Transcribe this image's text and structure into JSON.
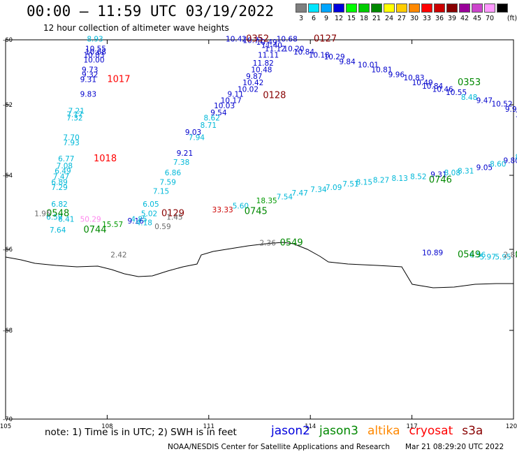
{
  "header": {
    "title": "00:00 – 11:59 UTC 03/19/2022",
    "subtitle": "12 hour collection of altimeter wave heights"
  },
  "colorbar": {
    "unit_label": "(ft)",
    "bins": [
      {
        "label": "3",
        "color": "#7f7f7f"
      },
      {
        "label": "6",
        "color": "#00e5ff"
      },
      {
        "label": "9",
        "color": "#00a5ff"
      },
      {
        "label": "12",
        "color": "#0000dd"
      },
      {
        "label": "15",
        "color": "#00ff00"
      },
      {
        "label": "18",
        "color": "#00cc00"
      },
      {
        "label": "21",
        "color": "#008800"
      },
      {
        "label": "24",
        "color": "#ffff00"
      },
      {
        "label": "27",
        "color": "#ffcc00"
      },
      {
        "label": "30",
        "color": "#ff8800"
      },
      {
        "label": "33",
        "color": "#ff0000"
      },
      {
        "label": "36",
        "color": "#cc0000"
      },
      {
        "label": "39",
        "color": "#880000"
      },
      {
        "label": "42",
        "color": "#990099"
      },
      {
        "label": "45",
        "color": "#cc44cc"
      },
      {
        "label": "70",
        "color": "#ff99ff"
      },
      {
        "label": "",
        "color": "#000000"
      }
    ]
  },
  "chart_data": {
    "type": "map",
    "projection": "mercator-like",
    "lon_range": [
      105,
      120
    ],
    "lat_range": [
      -70,
      -60
    ],
    "lon_ticks": [
      "105",
      "108",
      "111",
      "114",
      "117",
      "120"
    ],
    "lat_ticks": [
      "-60",
      "-62",
      "-64",
      "-66",
      "-68",
      "-70"
    ],
    "tracks": [
      {
        "satellite": "jason3",
        "time_labels": [
          {
            "text": "0548",
            "lon": 106.2,
            "lat": -65.1
          },
          {
            "text": "0744",
            "lon": 107.3,
            "lat": -65.55
          }
        ],
        "points": [
          {
            "lon": 107.4,
            "lat": -60.05,
            "value": "8.93"
          },
          {
            "lon": 107.35,
            "lat": -60.35,
            "value": "10.55"
          },
          {
            "lon": 107.35,
            "lat": -60.45,
            "value": "10.68"
          },
          {
            "lon": 107.3,
            "lat": -60.55,
            "value": "10.83"
          },
          {
            "lon": 107.3,
            "lat": -60.7,
            "value": "10.00"
          },
          {
            "lon": 107.25,
            "lat": -61.0,
            "value": "9.73"
          },
          {
            "lon": 107.25,
            "lat": -61.15,
            "value": "9.32"
          },
          {
            "lon": 107.2,
            "lat": -61.3,
            "value": "9.31"
          },
          {
            "lon": 107.2,
            "lat": -61.75,
            "value": "9.83"
          },
          {
            "lon": 106.85,
            "lat": -62.25,
            "value": "7.21"
          },
          {
            "lon": 106.8,
            "lat": -62.35,
            "value": "7.17"
          },
          {
            "lon": 106.8,
            "lat": -62.45,
            "value": "7.32"
          },
          {
            "lon": 106.7,
            "lat": -63.0,
            "value": "7.70"
          },
          {
            "lon": 106.7,
            "lat": -63.15,
            "value": "7.93"
          },
          {
            "lon": 106.55,
            "lat": -63.6,
            "value": "6.77"
          },
          {
            "lon": 106.5,
            "lat": -63.8,
            "value": "7.08"
          },
          {
            "lon": 106.45,
            "lat": -63.95,
            "value": "6.49"
          },
          {
            "lon": 106.4,
            "lat": -64.1,
            "value": "7.47"
          },
          {
            "lon": 106.35,
            "lat": -64.25,
            "value": "6.89"
          },
          {
            "lon": 106.35,
            "lat": -64.4,
            "value": "7.29"
          },
          {
            "lon": 106.35,
            "lat": -64.85,
            "value": "6.82"
          },
          {
            "lon": 106.2,
            "lat": -65.2,
            "value": "6.59"
          },
          {
            "lon": 106.55,
            "lat": -65.25,
            "value": "6.41"
          },
          {
            "lon": 106.3,
            "lat": -65.55,
            "value": "7.64"
          }
        ]
      },
      {
        "satellite": "cryosat",
        "time_labels": [
          {
            "text": "1017",
            "lon": 108.0,
            "lat": -61.3
          },
          {
            "text": "1018",
            "lon": 107.6,
            "lat": -63.6
          }
        ],
        "points": []
      },
      {
        "satellite": "jason2",
        "time_labels": [
          {
            "text": "0129",
            "lon": 109.6,
            "lat": -65.1
          },
          {
            "text": "0128",
            "lon": 112.6,
            "lat": -61.8
          },
          {
            "text": "0127",
            "lon": 114.1,
            "lat": -60.05
          },
          {
            "text": "0352",
            "lon": 112.1,
            "lat": -60.05
          }
        ],
        "points": [
          {
            "lon": 108.6,
            "lat": -65.3,
            "value": "9.16"
          },
          {
            "lon": 108.7,
            "lat": -65.25,
            "value": "4.85"
          },
          {
            "lon": 108.85,
            "lat": -65.35,
            "value": "4.18"
          },
          {
            "lon": 109.0,
            "lat": -65.1,
            "value": "5.02"
          },
          {
            "lon": 109.05,
            "lat": -64.85,
            "value": "6.05"
          },
          {
            "lon": 109.35,
            "lat": -64.5,
            "value": "7.15"
          },
          {
            "lon": 109.55,
            "lat": -64.25,
            "value": "7.59"
          },
          {
            "lon": 109.7,
            "lat": -64.0,
            "value": "6.86"
          },
          {
            "lon": 109.95,
            "lat": -63.7,
            "value": "7.38"
          },
          {
            "lon": 110.05,
            "lat": -63.45,
            "value": "9.21"
          },
          {
            "lon": 110.4,
            "lat": -63.0,
            "value": "7.94"
          },
          {
            "lon": 110.3,
            "lat": -62.85,
            "value": "9.03"
          },
          {
            "lon": 110.75,
            "lat": -62.65,
            "value": "8.71"
          },
          {
            "lon": 110.85,
            "lat": -62.45,
            "value": "8.62"
          },
          {
            "lon": 111.05,
            "lat": -62.3,
            "value": "9.54"
          },
          {
            "lon": 111.15,
            "lat": -62.1,
            "value": "10.03"
          },
          {
            "lon": 111.35,
            "lat": -61.95,
            "value": "10.17"
          },
          {
            "lon": 111.55,
            "lat": -61.75,
            "value": "9.11"
          },
          {
            "lon": 111.85,
            "lat": -61.6,
            "value": "10.02"
          },
          {
            "lon": 112.0,
            "lat": -61.4,
            "value": "10.42"
          },
          {
            "lon": 112.1,
            "lat": -61.2,
            "value": "9.87"
          },
          {
            "lon": 112.25,
            "lat": -61.0,
            "value": "10.48"
          },
          {
            "lon": 112.3,
            "lat": -60.8,
            "value": "11.82"
          },
          {
            "lon": 112.45,
            "lat": -60.55,
            "value": "11.11"
          },
          {
            "lon": 112.65,
            "lat": -60.35,
            "value": "11.12"
          },
          {
            "lon": 112.55,
            "lat": -60.25,
            "value": "11.40"
          },
          {
            "lon": 112.0,
            "lat": -60.1,
            "value": "10.71"
          },
          {
            "lon": 111.5,
            "lat": -60.05,
            "value": "10.42"
          },
          {
            "lon": 112.4,
            "lat": -60.15,
            "value": "10.49"
          },
          {
            "lon": 113.0,
            "lat": -60.05,
            "value": "10.68"
          },
          {
            "lon": 113.2,
            "lat": -60.35,
            "value": "10.20"
          },
          {
            "lon": 113.5,
            "lat": -60.45,
            "value": "10.84"
          },
          {
            "lon": 113.95,
            "lat": -60.55,
            "value": "10.18"
          },
          {
            "lon": 114.4,
            "lat": -60.6,
            "value": "10.29"
          },
          {
            "lon": 114.85,
            "lat": -60.75,
            "value": "9.84"
          },
          {
            "lon": 115.4,
            "lat": -60.85,
            "value": "10.01"
          },
          {
            "lon": 115.8,
            "lat": -61.0,
            "value": "10.81"
          },
          {
            "lon": 116.3,
            "lat": -61.15,
            "value": "9.96"
          },
          {
            "lon": 116.75,
            "lat": -61.25,
            "value": "10.83"
          },
          {
            "lon": 117.0,
            "lat": -61.4,
            "value": "10.49"
          },
          {
            "lon": 117.3,
            "lat": -61.5,
            "value": "10.84"
          },
          {
            "lon": 117.6,
            "lat": -61.6,
            "value": "10.46"
          },
          {
            "lon": 118.0,
            "lat": -61.7,
            "value": "10.55"
          },
          {
            "lon": 118.45,
            "lat": -61.85,
            "value": "8.48"
          },
          {
            "lon": 118.9,
            "lat": -61.95,
            "value": "9.47"
          },
          {
            "lon": 119.35,
            "lat": -62.05,
            "value": "10.52"
          },
          {
            "lon": 119.75,
            "lat": -62.2,
            "value": "9.99"
          },
          {
            "lon": 120.05,
            "lat": -62.35,
            "value": "11.31"
          },
          {
            "lon": 120.2,
            "lat": -62.45,
            "value": "10.37"
          }
        ]
      },
      {
        "satellite": "jason3",
        "time_labels": [
          {
            "text": "0353",
            "lon": 118.35,
            "lat": -61.4
          },
          {
            "text": "0745",
            "lon": 112.05,
            "lat": -65.05
          },
          {
            "text": "0746",
            "lon": 117.5,
            "lat": -64.2
          },
          {
            "text": "0549",
            "lon": 113.1,
            "lat": -65.9
          },
          {
            "text": "0549",
            "lon": 118.35,
            "lat": -66.2
          },
          {
            "text": "0550",
            "lon": 120.05,
            "lat": -66.2
          }
        ],
        "points": [
          {
            "lon": 111.7,
            "lat": -64.9,
            "value": "5.60"
          },
          {
            "lon": 112.4,
            "lat": -64.75,
            "value": "18.35"
          },
          {
            "lon": 113.0,
            "lat": -64.65,
            "value": "7.54"
          },
          {
            "lon": 113.45,
            "lat": -64.55,
            "value": "7.47"
          },
          {
            "lon": 114.0,
            "lat": -64.45,
            "value": "7.34"
          },
          {
            "lon": 114.45,
            "lat": -64.4,
            "value": "7.09"
          },
          {
            "lon": 114.95,
            "lat": -64.3,
            "value": "7.51"
          },
          {
            "lon": 115.35,
            "lat": -64.25,
            "value": "8.15"
          },
          {
            "lon": 115.85,
            "lat": -64.2,
            "value": "8.27"
          },
          {
            "lon": 116.4,
            "lat": -64.15,
            "value": "8.13"
          },
          {
            "lon": 116.95,
            "lat": -64.1,
            "value": "8.52"
          },
          {
            "lon": 117.55,
            "lat": -64.05,
            "value": "9.31"
          },
          {
            "lon": 117.95,
            "lat": -64.0,
            "value": "8.08"
          },
          {
            "lon": 118.35,
            "lat": -63.95,
            "value": "8.31"
          },
          {
            "lon": 118.9,
            "lat": -63.85,
            "value": "9.05"
          },
          {
            "lon": 119.3,
            "lat": -63.75,
            "value": "8.60"
          },
          {
            "lon": 119.7,
            "lat": -63.65,
            "value": "9.80"
          },
          {
            "lon": 120.05,
            "lat": -63.55,
            "value": "8.88"
          },
          {
            "lon": 120.25,
            "lat": -63.45,
            "value": "9"
          },
          {
            "lon": 117.3,
            "lat": -66.15,
            "value": "10.89"
          },
          {
            "lon": 118.7,
            "lat": -66.2,
            "value": "6.56"
          },
          {
            "lon": 119.0,
            "lat": -66.25,
            "value": "5.97"
          },
          {
            "lon": 119.45,
            "lat": -66.25,
            "value": "5.95"
          },
          {
            "lon": 119.7,
            "lat": -66.2,
            "value": "2.82"
          }
        ]
      },
      {
        "satellite": "misc",
        "time_labels": [],
        "points": [
          {
            "lon": 105.85,
            "lat": -65.1,
            "value": "1.95"
          },
          {
            "lon": 107.2,
            "lat": -65.25,
            "value": "50.29"
          },
          {
            "lon": 107.85,
            "lat": -65.4,
            "value": "15.57"
          },
          {
            "lon": 109.75,
            "lat": -65.2,
            "value": "1.45"
          },
          {
            "lon": 109.4,
            "lat": -65.45,
            "value": "0.59"
          },
          {
            "lon": 111.1,
            "lat": -65.0,
            "value": "33.33"
          },
          {
            "lon": 112.5,
            "lat": -65.9,
            "value": "2.36"
          },
          {
            "lon": 108.1,
            "lat": -66.2,
            "value": "2.42"
          }
        ]
      }
    ]
  },
  "footer": {
    "note": "note: 1) Time is in UTC; 2) SWH is in feet",
    "legend": [
      {
        "name": "jason2",
        "color": "#0000dd"
      },
      {
        "name": "jason3",
        "color": "#008800"
      },
      {
        "name": "altika",
        "color": "#ff8800"
      },
      {
        "name": "cryosat",
        "color": "#ff0000"
      },
      {
        "name": "s3a",
        "color": "#880000"
      }
    ],
    "credit": "NOAA/NESDIS Center for Satellite Applications and Research",
    "timestamp": "Mar 21 08:29:20 UTC 2022"
  }
}
